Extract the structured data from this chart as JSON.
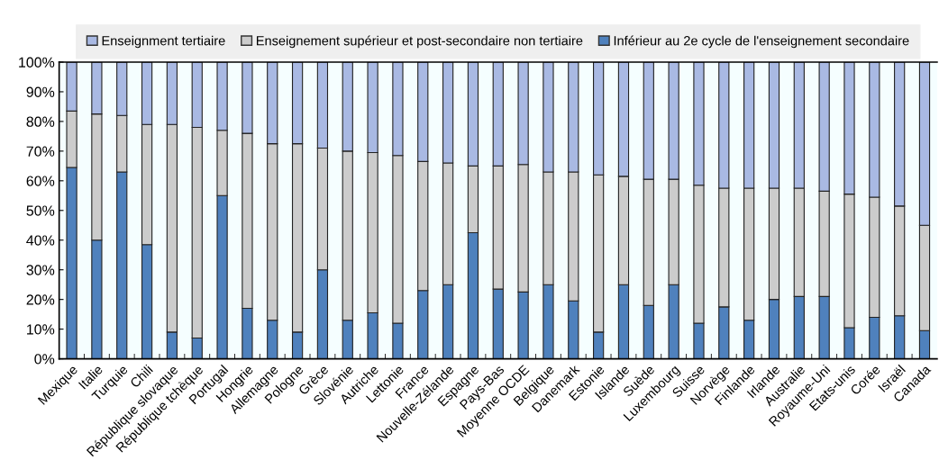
{
  "chart_data": {
    "type": "bar",
    "stacked": true,
    "categories": [
      "Mexique",
      "Italie",
      "Turquie",
      "Chili",
      "République slovaque",
      "République tchèque",
      "Portugal",
      "Hongrie",
      "Allemagne",
      "Pologne",
      "Grèce",
      "Slovénie",
      "Autriche",
      "Lettonie",
      "France",
      "Nouvelle-Zélande",
      "Espagne",
      "Pays-Bas",
      "Moyenne OCDE",
      "Belgique",
      "Danemark",
      "Estonie",
      "Islande",
      "Suède",
      "Luxembourg",
      "Suisse",
      "Norvège",
      "Finlande",
      "Irlande",
      "Australie",
      "Royaume-Uni",
      "Etats-unis",
      "Corée",
      "Israël",
      "Canada"
    ],
    "series": [
      {
        "name": "Inférieur au 2e cycle de l'enseignement secondaire",
        "color": "#4f81bd",
        "values": [
          64.5,
          40,
          63,
          38.5,
          9,
          7,
          55,
          17,
          13,
          9,
          30,
          13,
          15.5,
          12,
          23,
          25,
          42.5,
          23.5,
          22.5,
          25,
          19.5,
          9,
          25,
          18,
          25,
          12,
          17.5,
          13,
          20,
          21,
          21,
          10.5,
          14,
          14.5,
          9.5
        ]
      },
      {
        "name": "Enseignement supérieur et post-secondaire non tertiaire",
        "color": "#cccccc",
        "values": [
          19,
          42.5,
          19,
          40.5,
          70,
          71,
          22,
          59,
          59.5,
          63.5,
          41,
          57,
          54,
          56.5,
          43.5,
          41,
          22.5,
          41.5,
          43,
          38,
          43.5,
          53,
          36.5,
          42.5,
          35.5,
          46.5,
          40,
          44.5,
          37.5,
          36.5,
          35.5,
          45,
          40.5,
          37,
          35.5
        ]
      },
      {
        "name": "Enseignment tertiaire",
        "color": "#a9b9e3",
        "values": [
          16.5,
          17.5,
          18,
          21,
          21,
          22,
          23,
          24,
          27.5,
          27.5,
          29,
          30,
          30.5,
          31.5,
          33.5,
          34,
          35,
          35,
          34.5,
          37,
          37,
          38,
          38.5,
          39.5,
          39.5,
          41.5,
          42.5,
          42.5,
          42.5,
          42.5,
          43.5,
          44.5,
          45.5,
          48.5,
          55
        ]
      }
    ],
    "ylim": [
      0,
      100
    ],
    "yticks": [
      {
        "value": 0,
        "label": "0%"
      },
      {
        "value": 10,
        "label": "10%"
      },
      {
        "value": 20,
        "label": "20%"
      },
      {
        "value": 30,
        "label": "30%"
      },
      {
        "value": 40,
        "label": "40%"
      },
      {
        "value": 50,
        "label": "50%"
      },
      {
        "value": 60,
        "label": "60%"
      },
      {
        "value": 70,
        "label": "70%"
      },
      {
        "value": 80,
        "label": "80%"
      },
      {
        "value": 90,
        "label": "90%"
      },
      {
        "value": 100,
        "label": "100%"
      }
    ],
    "grid": false,
    "legend": "top"
  }
}
